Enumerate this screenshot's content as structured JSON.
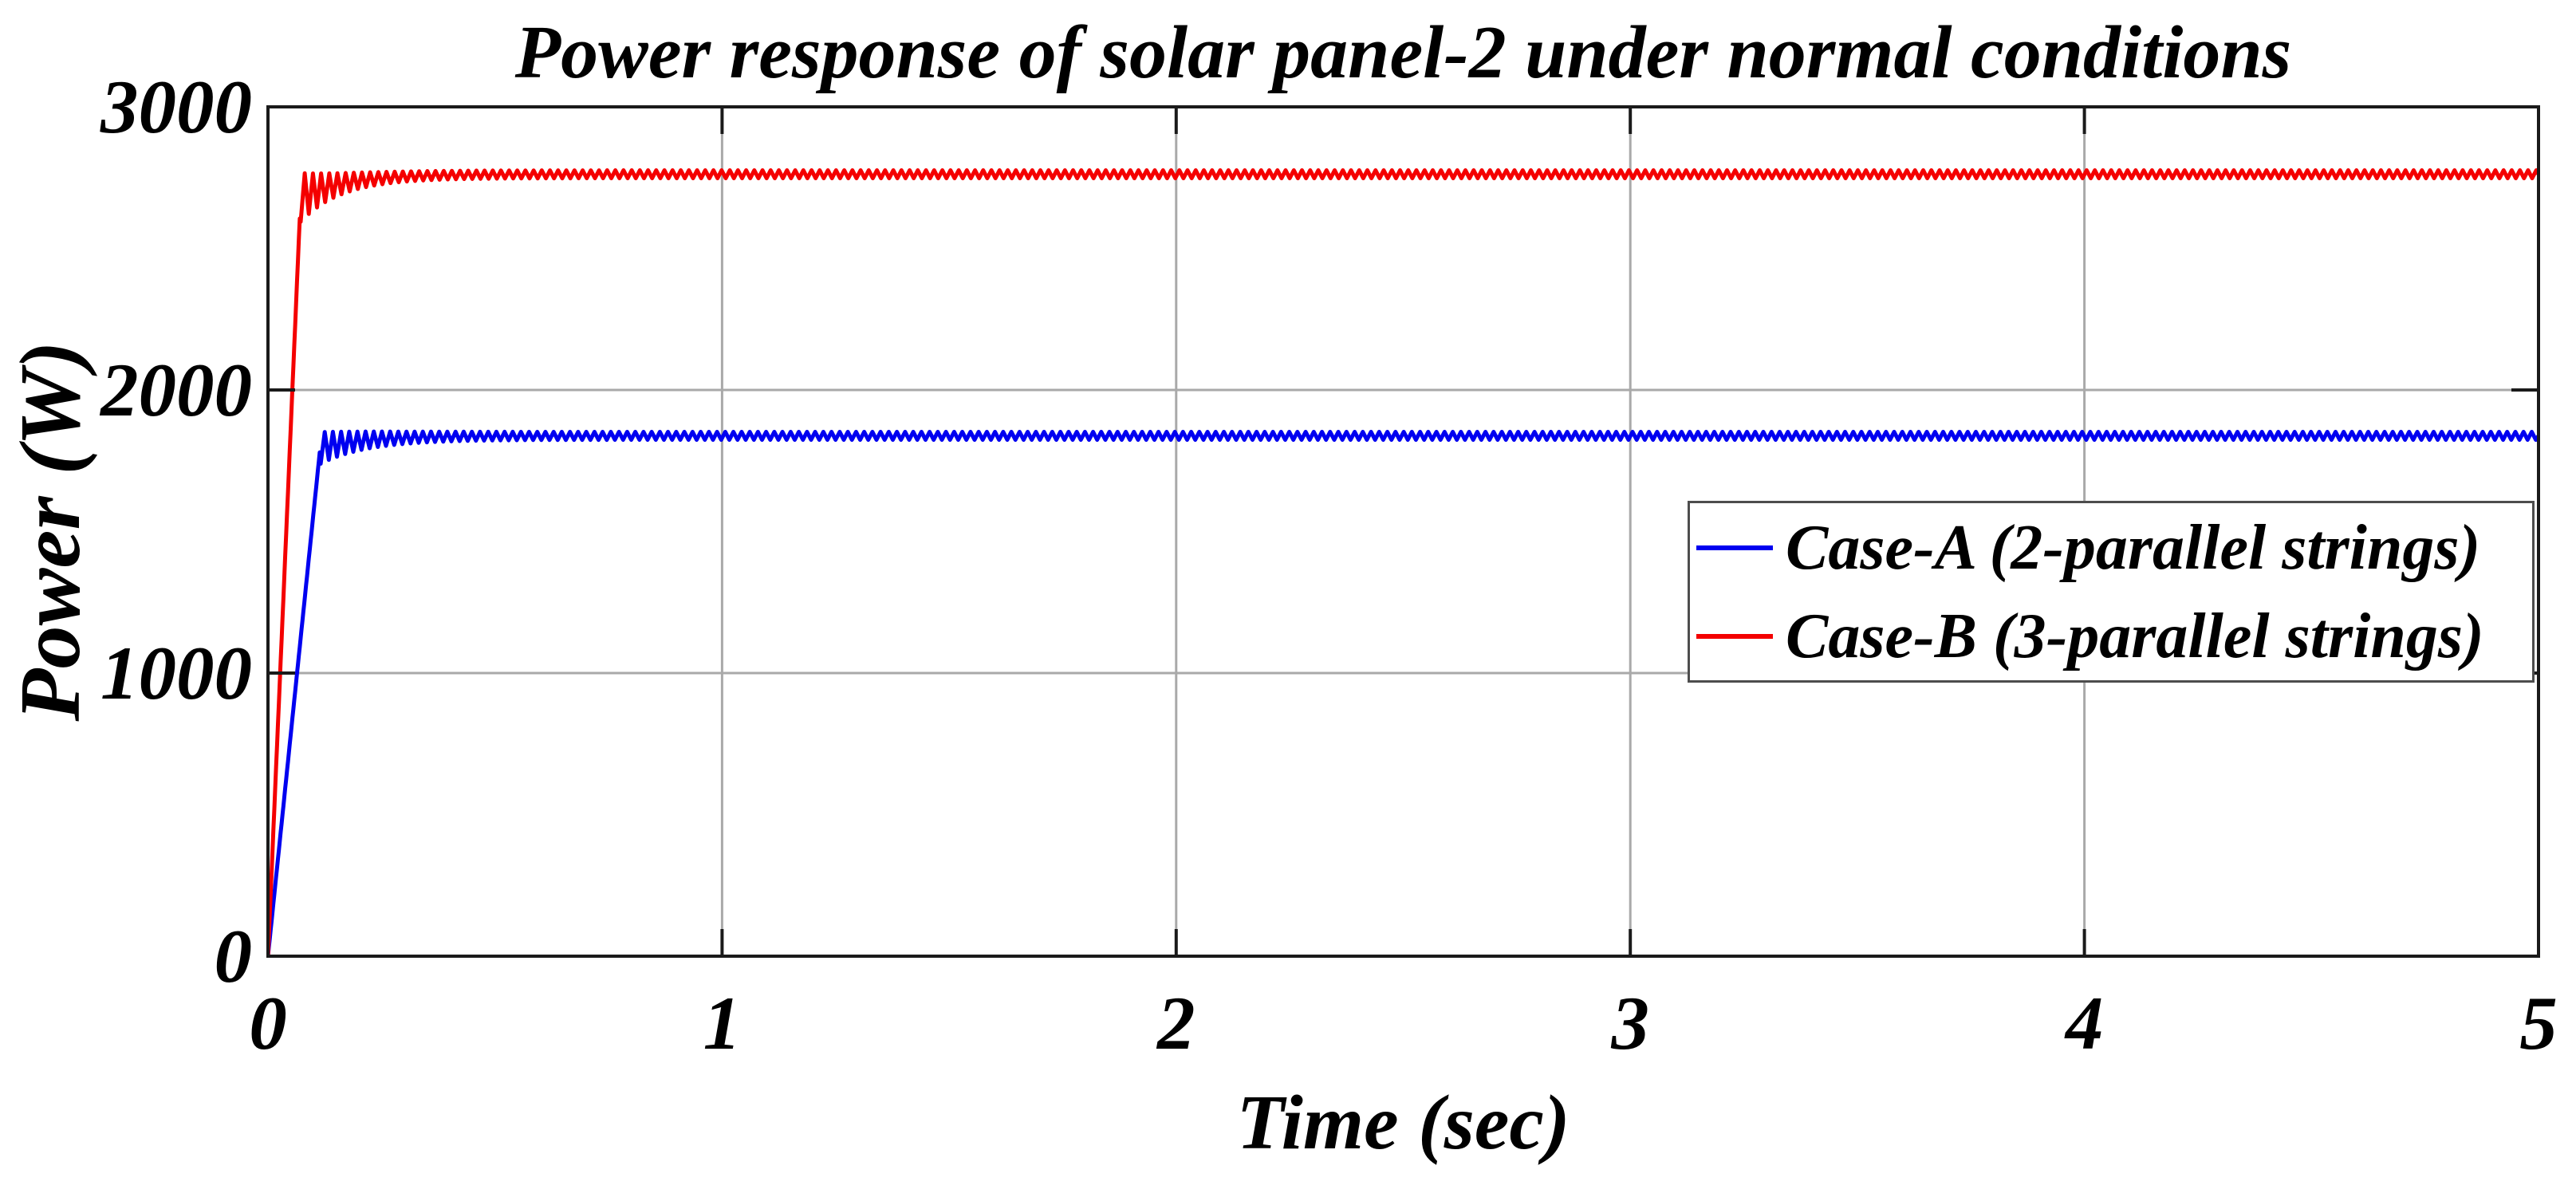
{
  "figure": {
    "background": "#ffffff",
    "frame_color": "#1a1a1a",
    "grid_color": "#a9a9a9",
    "tick_color": "#1a1a1a",
    "text_color": "#000000",
    "legend_border_color": "#4d4d4d"
  },
  "chart_data": {
    "type": "line",
    "title": "Power response of solar panel-2 under normal conditions",
    "xlabel": "Time (sec)",
    "ylabel": "Power (W)",
    "xlim": [
      0,
      5
    ],
    "ylim": [
      0,
      3000
    ],
    "x_ticks": [
      0,
      1,
      2,
      3,
      4,
      5
    ],
    "y_ticks": [
      0,
      1000,
      2000,
      3000
    ],
    "grid": "on",
    "legend_position": "inside-middle-right",
    "series": [
      {
        "name": "Case-A (2-parallel strings)",
        "color": "#0000f0",
        "steady_state_w": 1840,
        "keypoints_t_sec_power_w": [
          [
            0,
            0
          ],
          [
            0.06,
            1000
          ],
          [
            0.115,
            1795
          ],
          [
            0.3,
            1830
          ],
          [
            0.5,
            1840
          ],
          [
            1,
            1840
          ],
          [
            2,
            1840
          ],
          [
            3,
            1840
          ],
          [
            4,
            1840
          ],
          [
            5,
            1840
          ]
        ],
        "sim": {
          "knee_w": 1795,
          "rise_time_s": 0.115,
          "steady_state_w": 1838,
          "creep_tau_s": 0.1,
          "osc_amp_w": 42,
          "osc_decay_s": 0.11,
          "ripple_w": 14,
          "ripple_period_s": 0.018
        }
      },
      {
        "name": "Case-B (3-parallel strings)",
        "color": "#f40000",
        "steady_state_w": 2760,
        "keypoints_t_sec_power_w": [
          [
            0,
            0
          ],
          [
            0.025,
            1000
          ],
          [
            0.072,
            2680
          ],
          [
            0.3,
            2750
          ],
          [
            0.5,
            2760
          ],
          [
            1,
            2760
          ],
          [
            2,
            2760
          ],
          [
            3,
            2760
          ],
          [
            4,
            2760
          ],
          [
            5,
            2760
          ]
        ],
        "sim": {
          "knee_w": 2680,
          "rise_time_s": 0.072,
          "steady_state_w": 2762,
          "creep_tau_s": 0.1,
          "osc_amp_w": 72,
          "osc_decay_s": 0.08,
          "ripple_w": 14,
          "ripple_period_s": 0.018
        }
      }
    ]
  }
}
